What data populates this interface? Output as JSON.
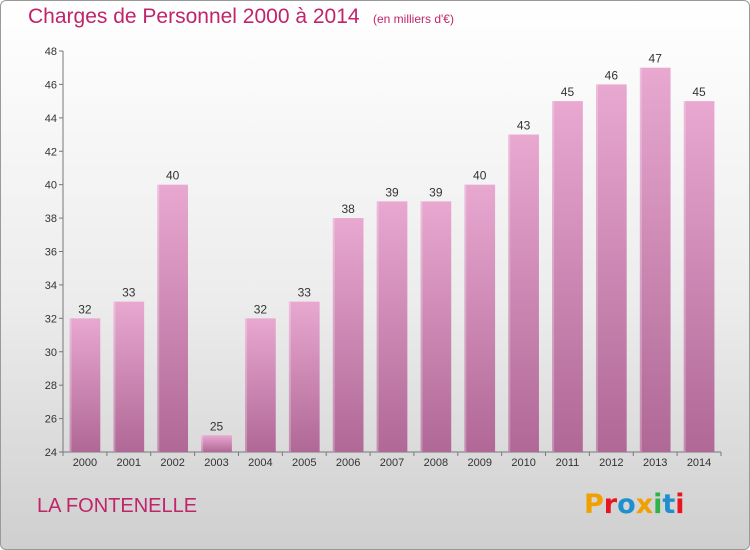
{
  "header": {
    "title": "Charges de Personnel 2000 à 2014",
    "subtitle": "(en milliers d'€)"
  },
  "footer": {
    "commune": "LA FONTENELLE",
    "logo_letters": [
      "P",
      "r",
      "o",
      "x",
      "i",
      "t",
      "i"
    ],
    "logo_colors": [
      "#f0a000",
      "#e8141e",
      "#1e90d0",
      "#f0a000",
      "#2db34a",
      "#1e90d0",
      "#e8141e"
    ]
  },
  "chart_data": {
    "type": "bar",
    "title": "Charges de Personnel 2000 à 2014",
    "subtitle": "(en milliers d'€)",
    "categories": [
      "2000",
      "2001",
      "2002",
      "2003",
      "2004",
      "2005",
      "2006",
      "2007",
      "2008",
      "2009",
      "2010",
      "2011",
      "2012",
      "2013",
      "2014"
    ],
    "values": [
      32,
      33,
      40,
      25,
      32,
      33,
      38,
      39,
      39,
      40,
      43,
      45,
      46,
      47,
      45
    ],
    "data_labels": [
      "32",
      "33",
      "40",
      "25",
      "32",
      "33",
      "38",
      "39",
      "39",
      "40",
      "43",
      "45",
      "46",
      "47",
      "45"
    ],
    "ylim": [
      24,
      48
    ],
    "yticks": [
      24,
      26,
      28,
      30,
      32,
      34,
      36,
      38,
      40,
      42,
      44,
      46,
      48
    ],
    "xlabel": "",
    "ylabel": "",
    "grid": false,
    "bar_color_top": "#e8a8d0",
    "bar_color_bottom": "#b06896",
    "axis_color": "#777777"
  }
}
